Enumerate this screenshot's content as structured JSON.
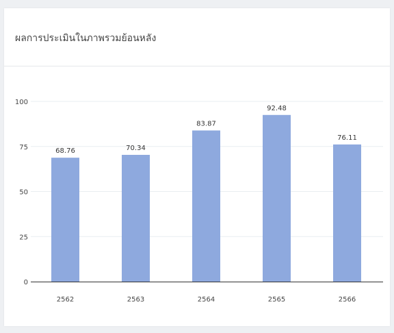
{
  "card": {
    "title": "ผลการประเมินในภาพรวมย้อนหลัง"
  },
  "colors": {
    "bar": "#8ea9de",
    "grid": "#e9edf1",
    "axis": "#333333"
  },
  "chart_data": {
    "type": "bar",
    "title": "",
    "xlabel": "",
    "ylabel": "",
    "categories": [
      "2562",
      "2563",
      "2564",
      "2565",
      "2566"
    ],
    "values": [
      68.76,
      70.34,
      83.87,
      92.48,
      76.11
    ],
    "data_labels": [
      "68.76",
      "70.34",
      "83.87",
      "92.48",
      "76.11"
    ],
    "ylim": [
      0,
      100
    ],
    "yticks": [
      "0",
      "25",
      "50",
      "75",
      "100"
    ],
    "grid": true,
    "legend": "none"
  }
}
